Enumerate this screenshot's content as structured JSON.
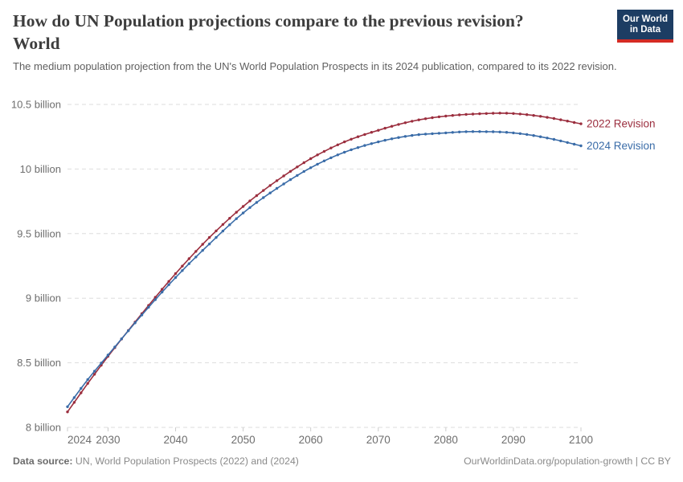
{
  "header": {
    "title_line1": "How do UN Population projections compare to the previous revision?",
    "title_line2": "World",
    "subtitle": "The medium population projection from the UN's World Population Prospects in its 2024 publication, compared to its 2022 revision.",
    "logo": {
      "line1": "Our World",
      "line2": "in Data",
      "bg_color": "#1d3d63",
      "accent_color": "#d42b24"
    }
  },
  "footer": {
    "data_source_label": "Data source:",
    "data_source_text": " UN, World Population Prospects (2022) and (2024)",
    "link_text": "OurWorldinData.org/population-growth | CC BY"
  },
  "chart_data": {
    "type": "line",
    "title": "How do UN Population projections compare to the previous revision? World",
    "xlabel": "",
    "ylabel": "",
    "unit": "billion people",
    "x_range": [
      2024,
      2100
    ],
    "ylim": [
      8,
      10.5
    ],
    "grid": true,
    "legend_position": "end-of-line labels",
    "marker_interval_years": 1,
    "x_ticks": [
      2024,
      2030,
      2040,
      2050,
      2060,
      2070,
      2080,
      2090,
      2100
    ],
    "y_ticks": [
      {
        "value": 8,
        "label": "8 billion"
      },
      {
        "value": 8.5,
        "label": "8.5 billion"
      },
      {
        "value": 9,
        "label": "9 billion"
      },
      {
        "value": 9.5,
        "label": "9.5 billion"
      },
      {
        "value": 10,
        "label": "10 billion"
      },
      {
        "value": 10.5,
        "label": "10.5 billion"
      }
    ],
    "series": [
      {
        "name": "2022 Revision",
        "color": "#9b2e3e",
        "anchor_years": [
          2024,
          2027,
          2030,
          2035,
          2040,
          2045,
          2050,
          2055,
          2060,
          2065,
          2070,
          2075,
          2080,
          2086,
          2090,
          2095,
          2100
        ],
        "anchor_values": [
          8.12,
          8.34,
          8.55,
          8.88,
          9.19,
          9.47,
          9.71,
          9.91,
          10.08,
          10.21,
          10.3,
          10.37,
          10.41,
          10.43,
          10.43,
          10.4,
          10.35
        ]
      },
      {
        "name": "2024 Revision",
        "color": "#3a6ca8",
        "anchor_years": [
          2024,
          2027,
          2030,
          2035,
          2040,
          2045,
          2050,
          2055,
          2060,
          2065,
          2070,
          2075,
          2080,
          2084,
          2090,
          2095,
          2100
        ],
        "anchor_values": [
          8.16,
          8.37,
          8.56,
          8.87,
          9.16,
          9.42,
          9.66,
          9.85,
          10.01,
          10.13,
          10.21,
          10.26,
          10.28,
          10.29,
          10.28,
          10.24,
          10.18
        ]
      }
    ],
    "style": {
      "grid_color": "#dddddd",
      "axis_label_color": "#6e6e6e",
      "tick_mark_color": "#cccccc"
    }
  }
}
